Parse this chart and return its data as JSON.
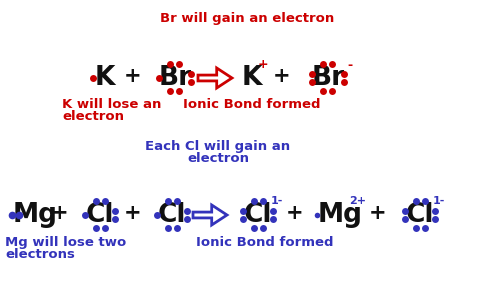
{
  "bg_color": "#ffffff",
  "red": "#cc0000",
  "blue": "#3333bb",
  "black": "#111111",
  "annotation_top1": "Br will gain an electron",
  "annotation_top2_l1": "Each Cl will gain an",
  "annotation_top2_l2": "electron",
  "label_k1": "K will lose an",
  "label_k2": "electron",
  "label_mg1": "Mg will lose two",
  "label_mg2": "electrons",
  "ionic1": "Ionic Bond formed",
  "ionic2": "Ionic Bond formed"
}
